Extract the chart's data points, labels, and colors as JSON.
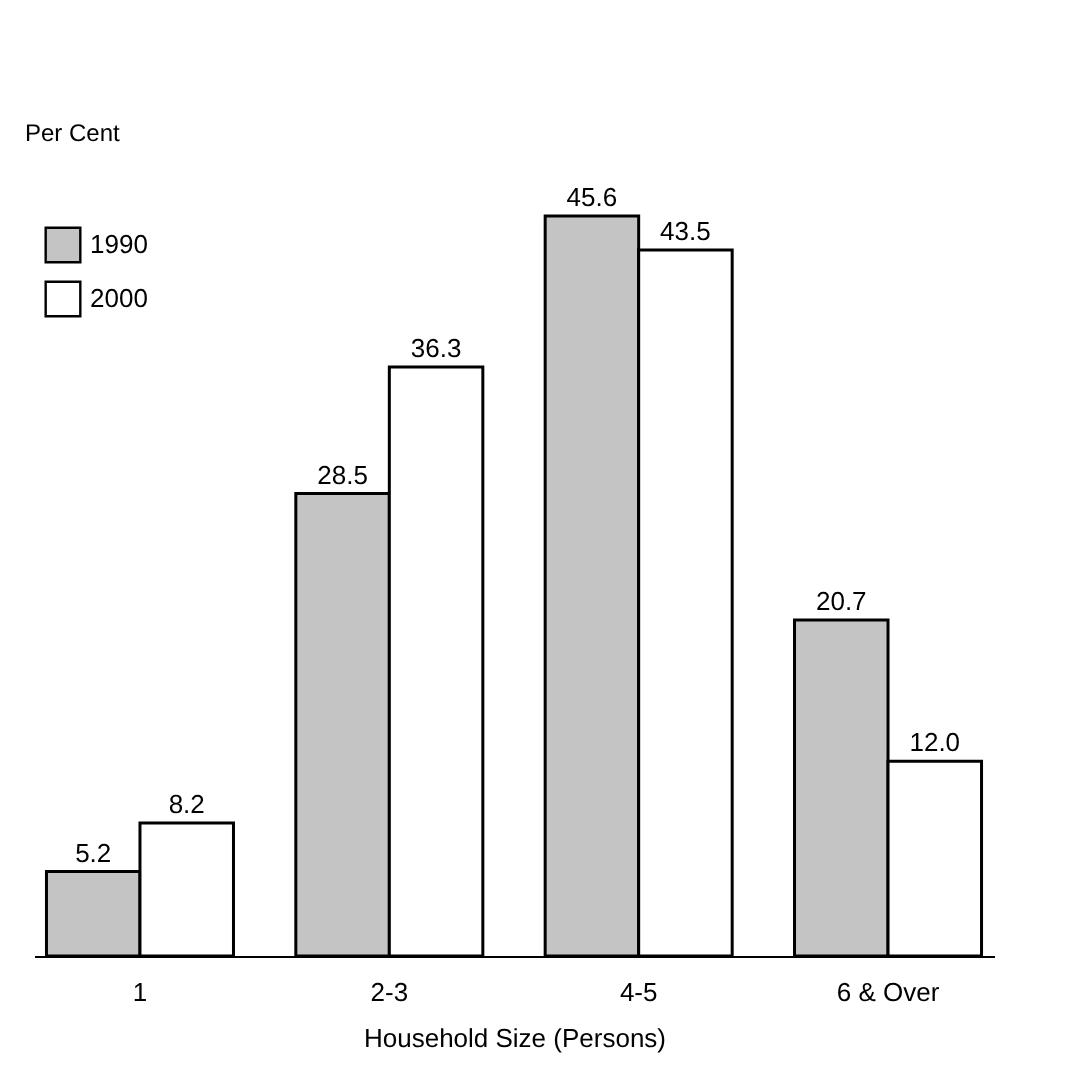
{
  "chart_data": {
    "type": "bar",
    "ylabel": "Per Cent",
    "xlabel": "Household Size (Persons)",
    "categories": [
      "1",
      "2-3",
      "4-5",
      "6 & Over"
    ],
    "series": [
      {
        "name": "1990",
        "color": "#c4c4c4",
        "values": [
          5.2,
          28.5,
          45.6,
          20.7
        ],
        "value_labels": [
          "5.2",
          "28.5",
          "45.6",
          "20.7"
        ]
      },
      {
        "name": "2000",
        "color": "#ffffff",
        "values": [
          8.2,
          36.3,
          43.5,
          12.0
        ],
        "value_labels": [
          "8.2",
          "36.3",
          "43.5",
          "12.0"
        ]
      }
    ],
    "legend": "top left",
    "grid": false
  }
}
